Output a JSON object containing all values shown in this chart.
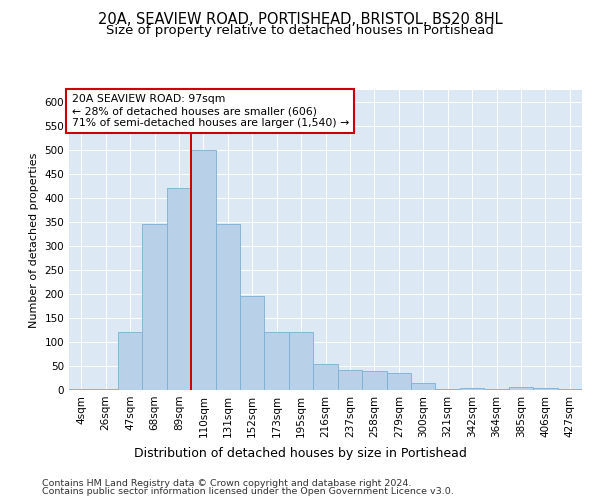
{
  "title1": "20A, SEAVIEW ROAD, PORTISHEAD, BRISTOL, BS20 8HL",
  "title2": "Size of property relative to detached houses in Portishead",
  "xlabel": "Distribution of detached houses by size in Portishead",
  "ylabel": "Number of detached properties",
  "categories": [
    "4sqm",
    "26sqm",
    "47sqm",
    "68sqm",
    "89sqm",
    "110sqm",
    "131sqm",
    "152sqm",
    "173sqm",
    "195sqm",
    "216sqm",
    "237sqm",
    "258sqm",
    "279sqm",
    "300sqm",
    "321sqm",
    "342sqm",
    "364sqm",
    "385sqm",
    "406sqm",
    "427sqm"
  ],
  "values": [
    3,
    3,
    120,
    345,
    420,
    500,
    345,
    195,
    120,
    120,
    55,
    42,
    40,
    35,
    15,
    3,
    5,
    3,
    6,
    4,
    3
  ],
  "bar_color": "#b8d0e8",
  "bar_edge_color": "#7bafd4",
  "vline_x": 4.5,
  "vline_color": "#cc0000",
  "annotation_text": "20A SEAVIEW ROAD: 97sqm\n← 28% of detached houses are smaller (606)\n71% of semi-detached houses are larger (1,540) →",
  "annotation_box_facecolor": "#ffffff",
  "annotation_box_edgecolor": "#cc0000",
  "ylim": [
    0,
    625
  ],
  "yticks": [
    0,
    50,
    100,
    150,
    200,
    250,
    300,
    350,
    400,
    450,
    500,
    550,
    600
  ],
  "bg_color": "#dce9f5",
  "footer1": "Contains HM Land Registry data © Crown copyright and database right 2024.",
  "footer2": "Contains public sector information licensed under the Open Government Licence v3.0.",
  "title1_fontsize": 10.5,
  "title2_fontsize": 9.5,
  "xlabel_fontsize": 9,
  "ylabel_fontsize": 8,
  "tick_fontsize": 7.5,
  "footer_fontsize": 6.8,
  "annot_fontsize": 7.8
}
